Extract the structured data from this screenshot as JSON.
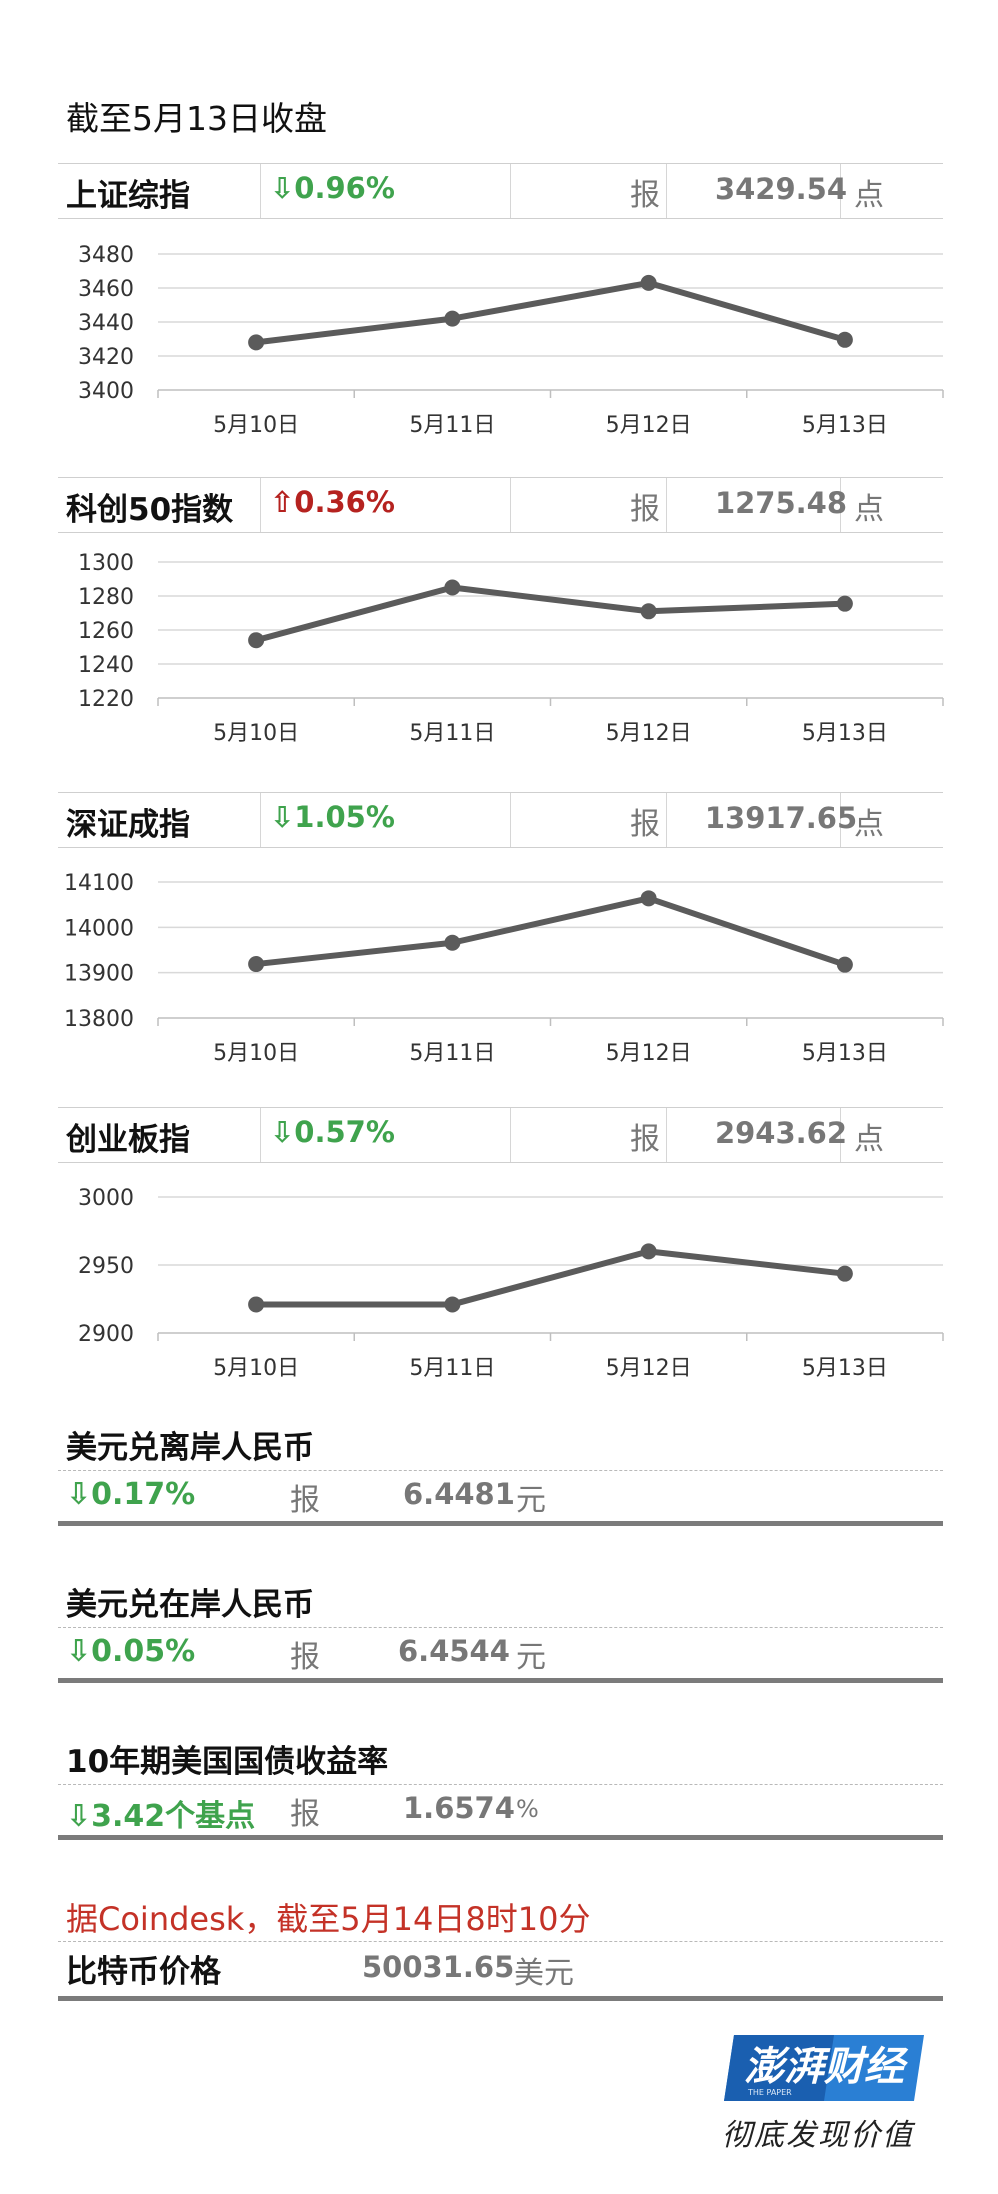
{
  "subtitle": "截至5月13日收盘",
  "indices": [
    {
      "name": "上证综指",
      "change": "⇩0.96%",
      "direction": "down",
      "bao": "报",
      "value": "3429.54",
      "unit": "点"
    },
    {
      "name": "科创50指数",
      "change": "⇧0.36%",
      "direction": "up",
      "bao": "报",
      "value": "1275.48",
      "unit": "点"
    },
    {
      "name": "深证成指",
      "change": "⇩1.05%",
      "direction": "down",
      "bao": "报",
      "value": "13917.65",
      "unit": "点"
    },
    {
      "name": "创业板指",
      "change": "⇩0.57%",
      "direction": "down",
      "bao": "报",
      "value": "2943.62",
      "unit": "点"
    }
  ],
  "chart_data": [
    {
      "type": "line",
      "categories": [
        "5月10日",
        "5月11日",
        "5月12日",
        "5月13日"
      ],
      "series": [
        {
          "values": [
            3428,
            3442,
            3463,
            3429.54
          ]
        }
      ],
      "yticks": [
        3400,
        3420,
        3440,
        3460,
        3480
      ],
      "ylim": [
        3400,
        3480
      ],
      "grid": true
    },
    {
      "type": "line",
      "categories": [
        "5月10日",
        "5月11日",
        "5月12日",
        "5月13日"
      ],
      "series": [
        {
          "values": [
            1254,
            1285,
            1271,
            1275.48
          ]
        }
      ],
      "yticks": [
        1220,
        1240,
        1260,
        1280,
        1300
      ],
      "ylim": [
        1220,
        1300
      ],
      "grid": true
    },
    {
      "type": "line",
      "categories": [
        "5月10日",
        "5月11日",
        "5月12日",
        "5月13日"
      ],
      "series": [
        {
          "values": [
            13919,
            13966,
            14064,
            13917.65
          ]
        }
      ],
      "yticks": [
        13800,
        13900,
        14000,
        14100
      ],
      "ylim": [
        13800,
        14100
      ],
      "grid": true
    },
    {
      "type": "line",
      "categories": [
        "5月10日",
        "5月11日",
        "5月12日",
        "5月13日"
      ],
      "series": [
        {
          "values": [
            2921,
            2921,
            2960,
            2943.62
          ]
        }
      ],
      "yticks": [
        2900,
        2950,
        3000
      ],
      "ylim": [
        2900,
        3000
      ],
      "grid": true
    }
  ],
  "fx": [
    {
      "title": "美元兑离岸人民币",
      "change": "⇩0.17%",
      "bao": "报",
      "value": "6.4481",
      "unit": "元"
    },
    {
      "title": "美元兑在岸人民币",
      "change": "⇩0.05%",
      "bao": "报",
      "value": "6.4544",
      "unit": "元"
    },
    {
      "title": "10年期美国国债收益率",
      "change": "⇩3.42个基点",
      "bao": "报",
      "value": "1.6574",
      "unit": "%"
    }
  ],
  "bitcoin": {
    "note": "据Coindesk，截至5月14日8时10分",
    "label": "比特币价格",
    "value": "50031.65",
    "unit": "美元"
  },
  "brand": {
    "logo_text": "澎湃财经",
    "logo_small": "THE PAPER",
    "slogan": "彻底发现价值"
  },
  "colors": {
    "down": "#3fa34d",
    "up": "#b5221f",
    "line": "#5b5b5b",
    "grid": "#d9d9d9",
    "note": "#c43227",
    "logo": "#1f6fc7"
  }
}
